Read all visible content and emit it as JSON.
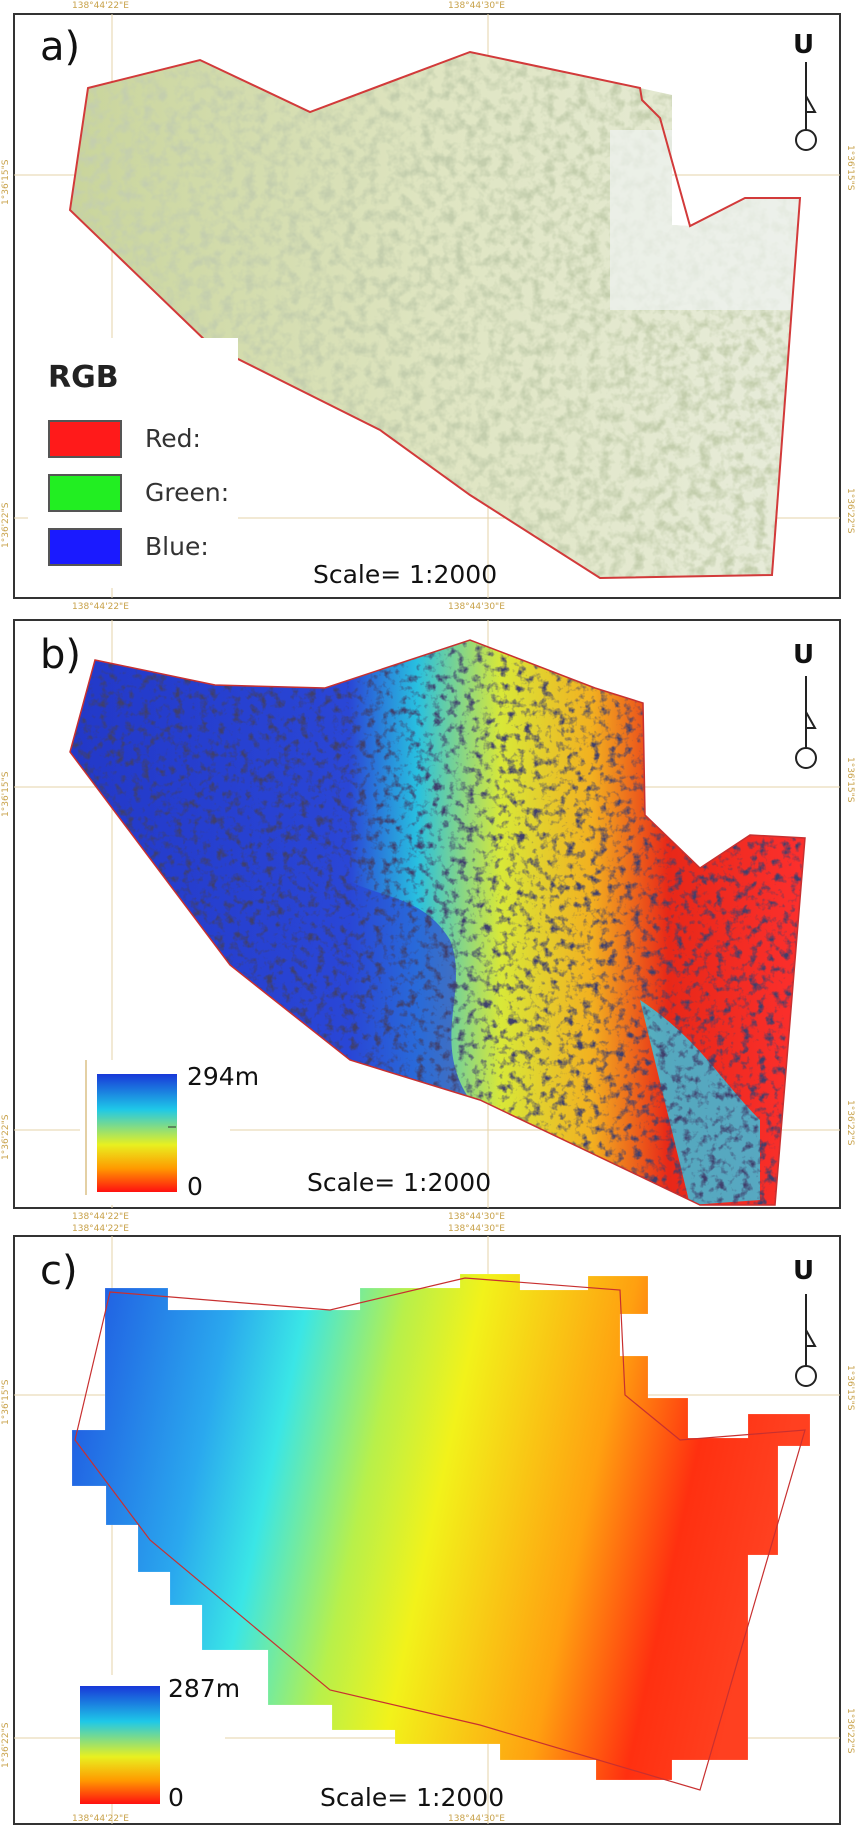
{
  "ticks": {
    "lon_left": "138°44'22\"E",
    "lon_center": "138°44'30\"E",
    "lat_top": "1°36'15\"S",
    "lat_bottom": "1°36'22\"S"
  },
  "panels": [
    {
      "letter": "a)",
      "north": "U",
      "scale": "Scale= 1:2000",
      "legend": {
        "title": "RGB",
        "items": [
          {
            "label": "Red:",
            "color": "#ff1a1a"
          },
          {
            "label": "Green:",
            "color": "#22ee22"
          },
          {
            "label": "Blue:",
            "color": "#1a1aff"
          }
        ]
      }
    },
    {
      "letter": "b)",
      "north": "U",
      "scale": "Scale= 1:2000",
      "ramp": {
        "max": "294m",
        "min": "0"
      }
    },
    {
      "letter": "c)",
      "north": "U",
      "scale": "Scale= 1:2000",
      "ramp": {
        "max": "287m",
        "min": "0"
      }
    }
  ],
  "colors": {
    "boundary": "#d23a3a",
    "grid": "#e0c890",
    "ramp": [
      "#1838d8",
      "#1ec8e8",
      "#e8f020",
      "#ff9a00",
      "#ff1010"
    ]
  }
}
